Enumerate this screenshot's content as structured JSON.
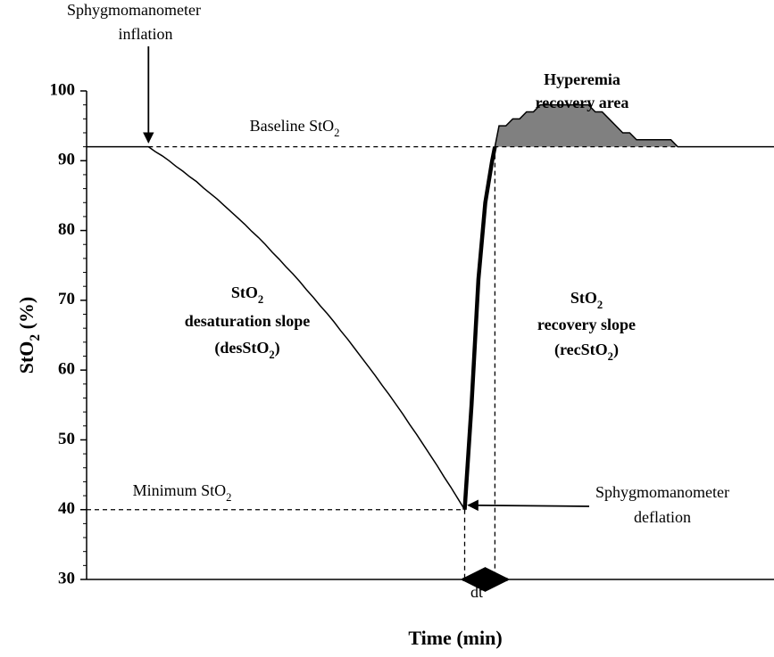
{
  "chart_data": {
    "type": "line",
    "xlabel": "Time (min)",
    "ylabel": {
      "text": "StO",
      "sub": "2",
      "tail": " (%)"
    },
    "ylim": [
      30,
      100
    ],
    "yticks": [
      30,
      40,
      50,
      60,
      70,
      80,
      90,
      100
    ],
    "categories": [
      null,
      null,
      null,
      null,
      null,
      null,
      null,
      null,
      null,
      null,
      null,
      null,
      null,
      null,
      null,
      null,
      null,
      null,
      null,
      null,
      null,
      null,
      null,
      null,
      null,
      null,
      null,
      null,
      null,
      null,
      null,
      null,
      null,
      null,
      null,
      null,
      null,
      null,
      null,
      null,
      null,
      null,
      null,
      null,
      null,
      null,
      null,
      null,
      null,
      null,
      null,
      null,
      null,
      null,
      null,
      null,
      null,
      null,
      null,
      null,
      null,
      null,
      null,
      null,
      null,
      null,
      null,
      null,
      null,
      null,
      null,
      null,
      null,
      null,
      null,
      null,
      null,
      null,
      null,
      null,
      null,
      null,
      null,
      null,
      null,
      null,
      null,
      null,
      null,
      null,
      null,
      null,
      null,
      null,
      null,
      null,
      null,
      null,
      null,
      null,
      null
    ],
    "series": [
      {
        "color": "#000000",
        "values": [
          92,
          92,
          92,
          92,
          92,
          92,
          92,
          92,
          92,
          92,
          91.3,
          90.7,
          90.0,
          89.2,
          88.5,
          87.7,
          87.0,
          86.1,
          85.3,
          84.5,
          83.6,
          82.7,
          81.8,
          80.9,
          79.9,
          79.0,
          78.0,
          76.9,
          75.9,
          74.8,
          73.8,
          72.7,
          71.5,
          70.4,
          69.2,
          68.1,
          66.9,
          65.6,
          64.4,
          63.1,
          61.8,
          60.5,
          59.2,
          57.8,
          56.5,
          55.1,
          53.7,
          52.2,
          50.8,
          49.3,
          47.8,
          46.3,
          44.7,
          43.2,
          41.6,
          40.0,
          55,
          73,
          84,
          90,
          95,
          95,
          96,
          96,
          97,
          97,
          98,
          98,
          98,
          98,
          98,
          98,
          98,
          98,
          97,
          97,
          96,
          95,
          94,
          94,
          93,
          93,
          93,
          93,
          93,
          93,
          92,
          92,
          92,
          92,
          92,
          92,
          92,
          92,
          92,
          92,
          92,
          92,
          92,
          92,
          92
        ]
      }
    ],
    "area_color": "#808080",
    "annotations": {
      "inflation": [
        "Sphygmomanometer",
        "inflation"
      ],
      "deflation": [
        "Sphygmomanometer",
        "deflation"
      ],
      "hyperemia": [
        "Hyperemia",
        "recovery area"
      ],
      "baseline": {
        "label": {
          "text": "Baseline StO",
          "sub": "2"
        },
        "value": 92
      },
      "minimum": {
        "label": {
          "text": "Minimum StO",
          "sub": "2"
        },
        "value": 40
      },
      "desaturation": [
        {
          "text": "StO",
          "sub": "2"
        },
        "desaturation slope",
        {
          "text": "(desStO",
          "sub": "2",
          "tail": ")"
        }
      ],
      "recovery": [
        {
          "text": "StO",
          "sub": "2"
        },
        "recovery slope",
        {
          "text": "(recStO",
          "sub": "2",
          "tail": ")"
        }
      ],
      "dt": "dt"
    }
  }
}
